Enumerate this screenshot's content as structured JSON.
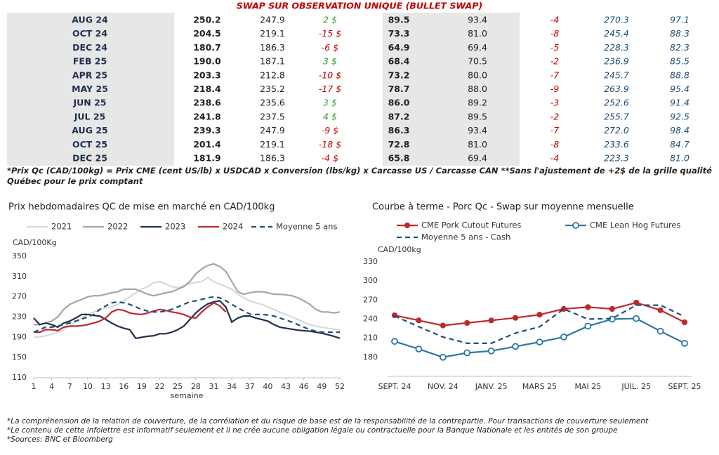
{
  "table": {
    "title": "SWAP SUR OBSERVATION UNIQUE (BULLET SWAP)",
    "rows": [
      [
        "AUG 24",
        "250.2",
        "247.9",
        "2 $",
        "89.5",
        "93.4",
        "-4",
        "270.3",
        "97.1"
      ],
      [
        "OCT 24",
        "204.5",
        "219.1",
        "-15 $",
        "73.3",
        "81.0",
        "-8",
        "245.4",
        "88.3"
      ],
      [
        "DEC 24",
        "180.7",
        "186.3",
        "-6 $",
        "64.9",
        "69.4",
        "-5",
        "228.3",
        "82.3"
      ],
      [
        "FEB 25",
        "190.0",
        "187.1",
        "3 $",
        "68.4",
        "70.5",
        "-2",
        "236.9",
        "85.5"
      ],
      [
        "APR 25",
        "203.3",
        "212.8",
        "-10 $",
        "73.2",
        "80.0",
        "-7",
        "245.7",
        "88.8"
      ],
      [
        "MAY 25",
        "218.4",
        "235.2",
        "-17 $",
        "78.7",
        "88.0",
        "-9",
        "263.9",
        "95.4"
      ],
      [
        "JUN 25",
        "238.6",
        "235.6",
        "3 $",
        "86.0",
        "89.2",
        "-3",
        "252.6",
        "91.4"
      ],
      [
        "JUL 25",
        "241.8",
        "237.5",
        "4 $",
        "87.2",
        "89.5",
        "-2",
        "255.7",
        "92.5"
      ],
      [
        "AUG 25",
        "239.3",
        "247.9",
        "-9 $",
        "86.3",
        "93.4",
        "-7",
        "272.0",
        "98.4"
      ],
      [
        "OCT 25",
        "201.4",
        "219.1",
        "-18 $",
        "72.8",
        "81.0",
        "-8",
        "233.6",
        "84.7"
      ],
      [
        "DEC 25",
        "181.9",
        "186.3",
        "-4 $",
        "65.8",
        "69.4",
        "-4",
        "223.3",
        "81.0"
      ]
    ],
    "note": "*Prix Qc (CAD/100kg) = Prix CME (cent US/lb) x USDCAD x Conversion (lbs/kg) x Carcasse US / Carcasse CAN **Sans l'ajustement de +2$ de la grille qualité Québec pour le prix comptant"
  },
  "chart_data": [
    {
      "type": "line",
      "title": "Prix hebdomadaires QC de mise en marché en CAD/100kg",
      "y_label": "CAD/100Kg",
      "x_label": "semaine",
      "x": [
        1,
        2,
        3,
        4,
        5,
        6,
        7,
        8,
        9,
        10,
        11,
        12,
        13,
        14,
        15,
        16,
        17,
        18,
        19,
        20,
        21,
        22,
        23,
        24,
        25,
        26,
        27,
        28,
        29,
        30,
        31,
        32,
        33,
        34,
        35,
        36,
        37,
        38,
        39,
        40,
        41,
        42,
        43,
        44,
        45,
        46,
        47,
        48,
        49,
        50,
        51,
        52
      ],
      "xlim": [
        1,
        52
      ],
      "xticks": [
        1,
        4,
        7,
        10,
        13,
        16,
        19,
        22,
        25,
        28,
        31,
        34,
        37,
        40,
        43,
        46,
        49,
        52
      ],
      "ylim": [
        110,
        350
      ],
      "yticks": [
        110,
        150,
        190,
        230,
        270,
        310,
        350
      ],
      "series": [
        {
          "name": "2021",
          "color": "#d9d9d9",
          "values": [
            190,
            191,
            193,
            196,
            200,
            205,
            212,
            220,
            228,
            235,
            240,
            245,
            248,
            250,
            255,
            262,
            270,
            278,
            285,
            290,
            298,
            300,
            295,
            290,
            288,
            292,
            296,
            298,
            300,
            308,
            300,
            295,
            290,
            285,
            275,
            268,
            262,
            258,
            255,
            250,
            245,
            240,
            235,
            230,
            225,
            220,
            215,
            212,
            210,
            208,
            206,
            205
          ]
        },
        {
          "name": "2022",
          "color": "#a6a6a6",
          "values": [
            215,
            215,
            218,
            222,
            230,
            245,
            255,
            260,
            265,
            270,
            272,
            272,
            275,
            278,
            280,
            285,
            285,
            285,
            280,
            275,
            272,
            275,
            278,
            280,
            285,
            290,
            300,
            315,
            325,
            332,
            335,
            330,
            320,
            300,
            280,
            275,
            278,
            280,
            280,
            278,
            275,
            275,
            274,
            272,
            268,
            262,
            255,
            245,
            240,
            240,
            238,
            240
          ]
        },
        {
          "name": "2023",
          "color": "#1f2f4f",
          "values": [
            228,
            215,
            218,
            215,
            210,
            218,
            222,
            228,
            235,
            235,
            233,
            232,
            225,
            218,
            212,
            208,
            205,
            188,
            190,
            192,
            193,
            197,
            197,
            200,
            205,
            212,
            225,
            238,
            248,
            256,
            260,
            262,
            250,
            220,
            228,
            232,
            232,
            228,
            225,
            222,
            215,
            210,
            208,
            206,
            204,
            203,
            202,
            200,
            198,
            195,
            192,
            188
          ]
        },
        {
          "name": "2024",
          "color": "#c0282d",
          "values": [
            200,
            200,
            205,
            205,
            203,
            210,
            212,
            212,
            213,
            215,
            218,
            222,
            228,
            240,
            245,
            243,
            238,
            236,
            235,
            238,
            242,
            245,
            243,
            240,
            238,
            235,
            230,
            228,
            240,
            250,
            258,
            252,
            240,
            null,
            null,
            null,
            null,
            null,
            null,
            null,
            null,
            null,
            null,
            null,
            null,
            null,
            null,
            null,
            null,
            null,
            null,
            null
          ]
        },
        {
          "name": "Moyenne 5 ans",
          "color": "#1f4e79",
          "dash": true,
          "values": [
            200,
            205,
            210,
            210,
            212,
            215,
            218,
            222,
            226,
            230,
            235,
            245,
            252,
            258,
            260,
            258,
            255,
            250,
            245,
            242,
            240,
            240,
            242,
            245,
            250,
            255,
            260,
            262,
            265,
            268,
            270,
            268,
            262,
            255,
            248,
            242,
            236,
            235,
            235,
            234,
            232,
            228,
            224,
            220,
            215,
            210,
            205,
            202,
            200,
            200,
            200,
            200
          ]
        }
      ]
    },
    {
      "type": "line",
      "title": "Courbe à terme - Porc Qc - Swap sur moyenne mensuelle",
      "y_label": "CAD/100kg",
      "categories": [
        "SEPT. 24",
        null,
        "NOV. 24",
        null,
        "JANV. 25",
        null,
        "MARS 25",
        null,
        "MAI 25",
        null,
        "JUIL. 25",
        null,
        "SEPT. 25"
      ],
      "ylim": [
        150,
        330
      ],
      "yticks": [
        180,
        210,
        240,
        270,
        300,
        330
      ],
      "series": [
        {
          "name": "CME Pork Cutout Futures",
          "color": "#c0282d",
          "marker": "filled",
          "values": [
            246,
            238,
            230,
            234,
            238,
            242,
            247,
            256,
            259,
            256,
            266,
            254,
            235
          ]
        },
        {
          "name": "CME Lean Hog Futures",
          "color": "#2e75a6",
          "marker": "open",
          "values": [
            205,
            193,
            180,
            187,
            190,
            197,
            204,
            212,
            229,
            240,
            241,
            221,
            202
          ]
        },
        {
          "name": "Moyenne 5 ans - Cash",
          "color": "#1f4e79",
          "dash": true,
          "values": [
            245,
            228,
            212,
            202,
            202,
            218,
            228,
            256,
            240,
            241,
            262,
            262,
            244
          ]
        }
      ]
    }
  ],
  "footer": [
    "*La compréhension de la relation de couverture, de la corrélation et du risque de base est de la responsabilité de la contrepartie. Pour transactions de couverture seulement",
    "*Le contenu de cette infolettre est informatif seulement et il ne crée aucune obligation légale ou contractuelle pour la Banque Nationale et les entités de son groupe",
    "*Sources: BNC et Bloomberg"
  ]
}
